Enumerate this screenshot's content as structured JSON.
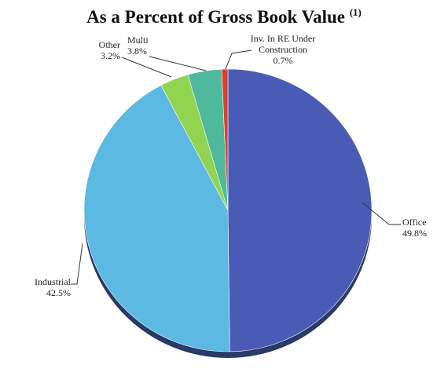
{
  "chart_data": {
    "type": "pie",
    "title": "As a Percent of Gross Book Value",
    "title_note": "(1)",
    "categories": [
      "Office",
      "Industrial",
      "Other",
      "Multi",
      "Inv. In RE Under Construction"
    ],
    "values": [
      49.8,
      42.5,
      3.2,
      3.8,
      0.7
    ],
    "value_labels": [
      "49.8%",
      "42.5%",
      "3.2%",
      "3.8%",
      "0.7%"
    ],
    "colors": [
      "#4a5bb5",
      "#5cb9e2",
      "#90d450",
      "#4fb99c",
      "#d6412c"
    ]
  }
}
